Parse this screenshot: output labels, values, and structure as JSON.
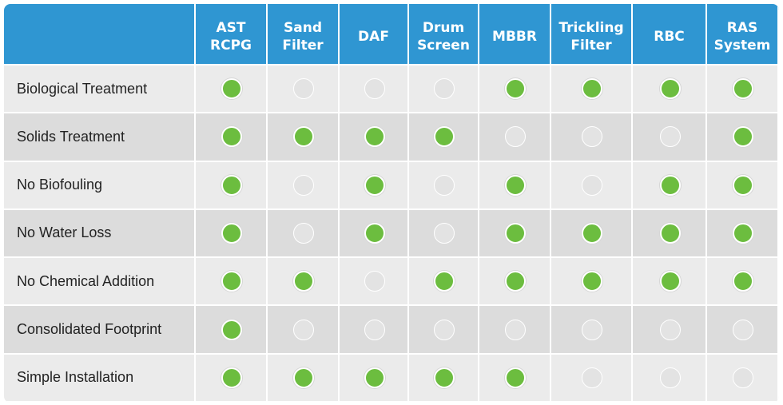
{
  "table": {
    "columns": [
      [
        "AST",
        "RCPG"
      ],
      [
        "Sand",
        "Filter"
      ],
      [
        "DAF"
      ],
      [
        "Drum",
        "Screen"
      ],
      [
        "MBBR"
      ],
      [
        "Trickling",
        "Filter"
      ],
      [
        "RBC"
      ],
      [
        "RAS",
        "System"
      ]
    ],
    "rows": [
      {
        "label": "Biological Treatment",
        "cells": [
          true,
          false,
          false,
          false,
          true,
          true,
          true,
          true
        ]
      },
      {
        "label": "Solids Treatment",
        "cells": [
          true,
          true,
          true,
          true,
          false,
          false,
          false,
          true
        ]
      },
      {
        "label": "No Biofouling",
        "cells": [
          true,
          false,
          true,
          false,
          true,
          false,
          true,
          true
        ]
      },
      {
        "label": "No Water Loss",
        "cells": [
          true,
          false,
          true,
          false,
          true,
          true,
          true,
          true
        ]
      },
      {
        "label": "No Chemical Addition",
        "cells": [
          true,
          true,
          false,
          true,
          true,
          true,
          true,
          true
        ]
      },
      {
        "label": "Consolidated Footprint",
        "cells": [
          true,
          false,
          false,
          false,
          false,
          false,
          false,
          false
        ]
      },
      {
        "label": "Simple Installation",
        "cells": [
          true,
          true,
          true,
          true,
          true,
          false,
          false,
          false
        ]
      }
    ]
  }
}
